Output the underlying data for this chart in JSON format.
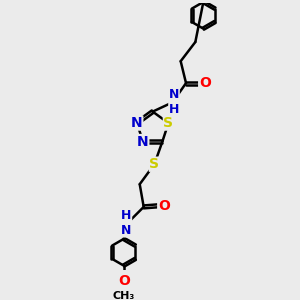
{
  "background_color": "#ebebeb",
  "atom_colors": {
    "C": "#000000",
    "N": "#0000cc",
    "O": "#ff0000",
    "S": "#cccc00",
    "H": "#000000"
  },
  "bond_color": "#000000",
  "bond_width": 1.8,
  "dbo": 0.055,
  "font_size": 10,
  "figsize": [
    3.0,
    3.0
  ],
  "dpi": 100
}
